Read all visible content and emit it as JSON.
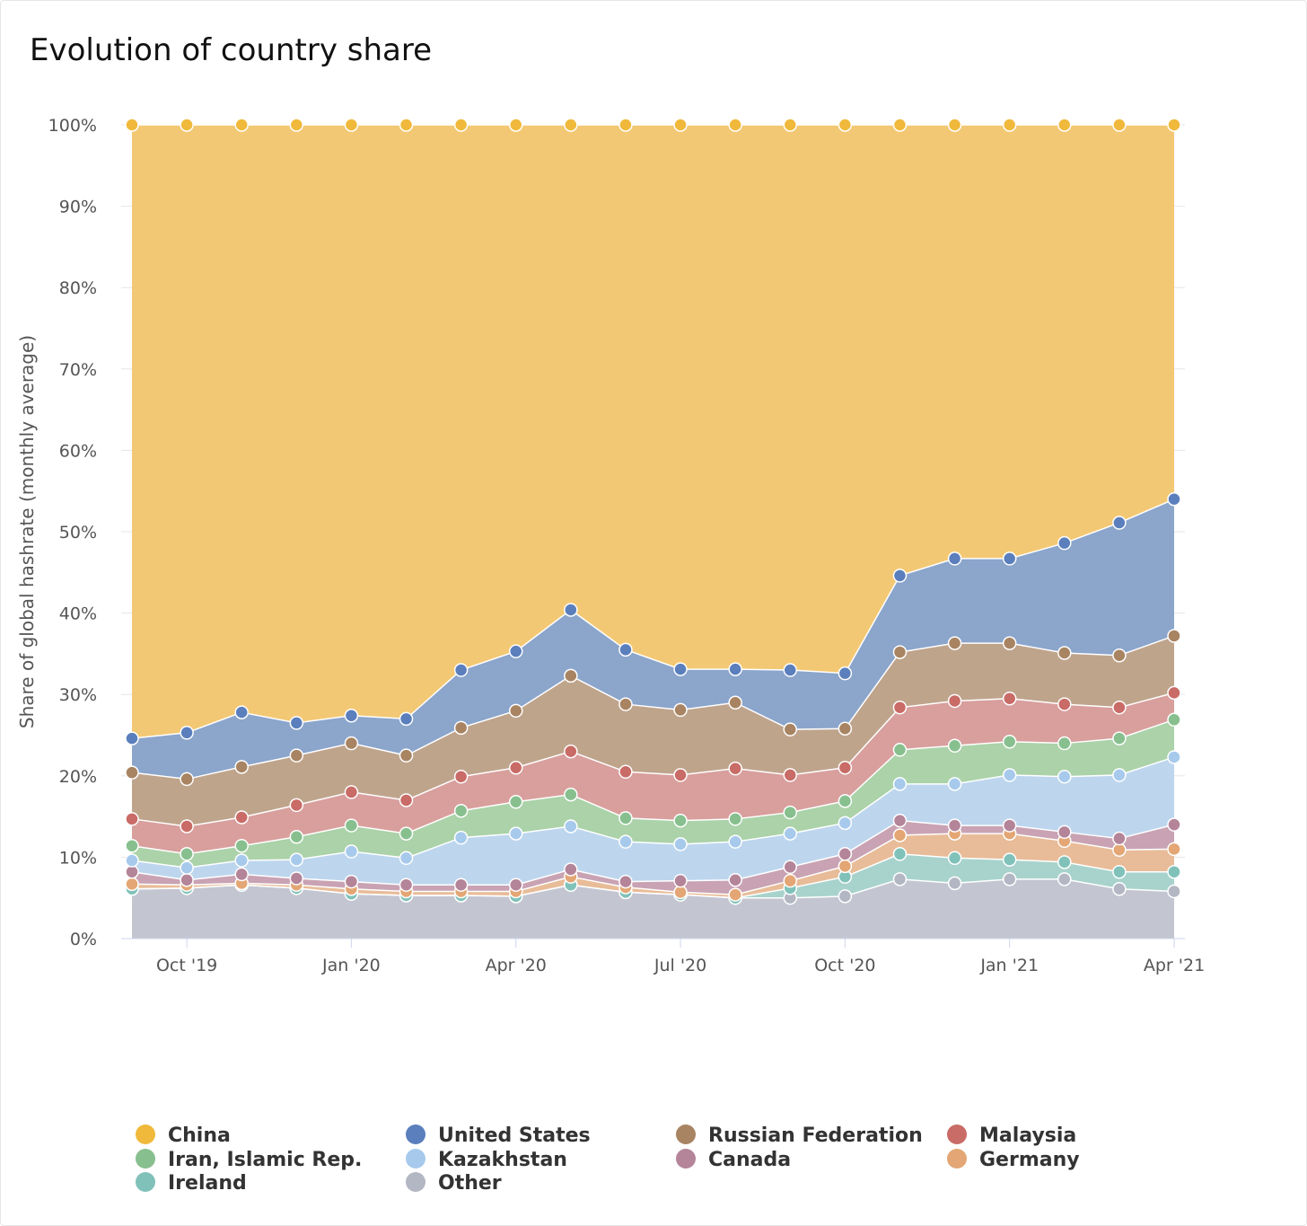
{
  "chart_data": {
    "type": "area",
    "stacked": "percent",
    "title": "Evolution of country share",
    "xlabel": "",
    "ylabel": "Share of global hashrate (monthly average)",
    "ylim": [
      0,
      100
    ],
    "yticks": [
      "0%",
      "10%",
      "20%",
      "30%",
      "40%",
      "50%",
      "60%",
      "70%",
      "80%",
      "90%",
      "100%"
    ],
    "x": [
      "Sep '19",
      "Oct '19",
      "Nov '19",
      "Dec '19",
      "Jan '20",
      "Feb '20",
      "Mar '20",
      "Apr '20",
      "May '20",
      "Jun '20",
      "Jul '20",
      "Aug '20",
      "Sep '20",
      "Oct '20",
      "Nov '20",
      "Dec '20",
      "Jan '21",
      "Feb '21",
      "Mar '21",
      "Apr '21"
    ],
    "xticks": [
      {
        "label": "Oct '19",
        "index": 1
      },
      {
        "label": "Jan '20",
        "index": 4
      },
      {
        "label": "Apr '20",
        "index": 7
      },
      {
        "label": "Jul '20",
        "index": 10
      },
      {
        "label": "Oct '20",
        "index": 13
      },
      {
        "label": "Jan '21",
        "index": 16
      },
      {
        "label": "Apr '21",
        "index": 19
      }
    ],
    "grid": true,
    "legend_position": "bottom",
    "series": [
      {
        "name": "Other",
        "color": "#b3b7c3",
        "fill": "#c3c6d1",
        "values": [
          6.1,
          6.2,
          6.6,
          6.2,
          5.5,
          5.3,
          5.3,
          5.2,
          6.6,
          5.7,
          5.4,
          5.0,
          5.0,
          5.2,
          7.3,
          6.8,
          7.3,
          7.3,
          6.1,
          5.8
        ]
      },
      {
        "name": "Ireland",
        "color": "#80c2b9",
        "fill": "#a8d3cc",
        "values": [
          0,
          0,
          0,
          0,
          0,
          0,
          0,
          0,
          0,
          0,
          0,
          0,
          1.2,
          2.4,
          3.1,
          3.1,
          2.4,
          2.1,
          2.1,
          2.4
        ]
      },
      {
        "name": "Germany",
        "color": "#e3a674",
        "fill": "#e8bc98",
        "values": [
          0.6,
          0.4,
          0.2,
          0.4,
          0.6,
          0.5,
          0.5,
          0.6,
          1.0,
          0.6,
          0.3,
          0.4,
          0.9,
          1.3,
          2.3,
          3.0,
          3.2,
          2.6,
          2.7,
          2.8
        ]
      },
      {
        "name": "Canada",
        "color": "#b48499",
        "fill": "#c9a3b3",
        "values": [
          1.5,
          0.6,
          1.1,
          0.8,
          0.9,
          0.8,
          0.8,
          0.8,
          0.9,
          0.7,
          1.4,
          1.8,
          1.7,
          1.5,
          1.8,
          1.0,
          1.0,
          1.1,
          1.4,
          3.0
        ]
      },
      {
        "name": "Kazakhstan",
        "color": "#a7caec",
        "fill": "#bdd6ee",
        "values": [
          1.4,
          1.5,
          1.7,
          2.3,
          3.7,
          3.3,
          5.8,
          6.3,
          5.3,
          4.9,
          4.5,
          4.7,
          4.1,
          3.8,
          4.5,
          5.1,
          6.2,
          6.8,
          7.8,
          8.3
        ]
      },
      {
        "name": "Iran, Islamic Rep.",
        "color": "#87c08e",
        "fill": "#abd2a9",
        "values": [
          1.8,
          1.7,
          1.8,
          2.8,
          3.2,
          3.0,
          3.3,
          3.9,
          3.9,
          2.9,
          2.9,
          2.8,
          2.6,
          2.7,
          4.2,
          4.7,
          4.1,
          4.1,
          4.5,
          4.6
        ]
      },
      {
        "name": "Malaysia",
        "color": "#c96b66",
        "fill": "#d89f9d",
        "values": [
          3.3,
          3.4,
          3.5,
          3.9,
          4.1,
          4.1,
          4.2,
          4.2,
          5.3,
          5.7,
          5.6,
          6.2,
          4.6,
          4.1,
          5.2,
          5.5,
          5.3,
          4.8,
          3.8,
          3.3
        ]
      },
      {
        "name": "Russian Federation",
        "color": "#a88463",
        "fill": "#bfa48c",
        "values": [
          5.7,
          5.8,
          6.2,
          6.1,
          6.0,
          5.5,
          6.0,
          7.0,
          9.3,
          8.3,
          8.0,
          8.1,
          5.6,
          4.8,
          6.8,
          7.1,
          6.8,
          6.3,
          6.4,
          7.0
        ]
      },
      {
        "name": "United States",
        "color": "#5b7fbd",
        "fill": "#8ba5cb",
        "values": [
          4.2,
          5.7,
          6.7,
          4.0,
          3.4,
          4.5,
          7.1,
          7.3,
          8.1,
          6.7,
          5.0,
          4.1,
          7.3,
          6.8,
          9.4,
          10.4,
          10.4,
          13.5,
          16.3,
          16.8
        ]
      },
      {
        "name": "China",
        "color": "#f0b93b",
        "fill": "#f3c874",
        "values": [
          75.4,
          74.7,
          72.2,
          73.5,
          72.6,
          73.0,
          67.0,
          64.7,
          59.6,
          64.5,
          66.9,
          66.9,
          67.0,
          67.4,
          55.4,
          53.3,
          53.3,
          51.4,
          48.9,
          46.0
        ]
      }
    ],
    "legend_order": [
      "China",
      "United States",
      "Russian Federation",
      "Malaysia",
      "Iran, Islamic Rep.",
      "Kazakhstan",
      "Canada",
      "Germany",
      "Ireland",
      "Other"
    ]
  }
}
